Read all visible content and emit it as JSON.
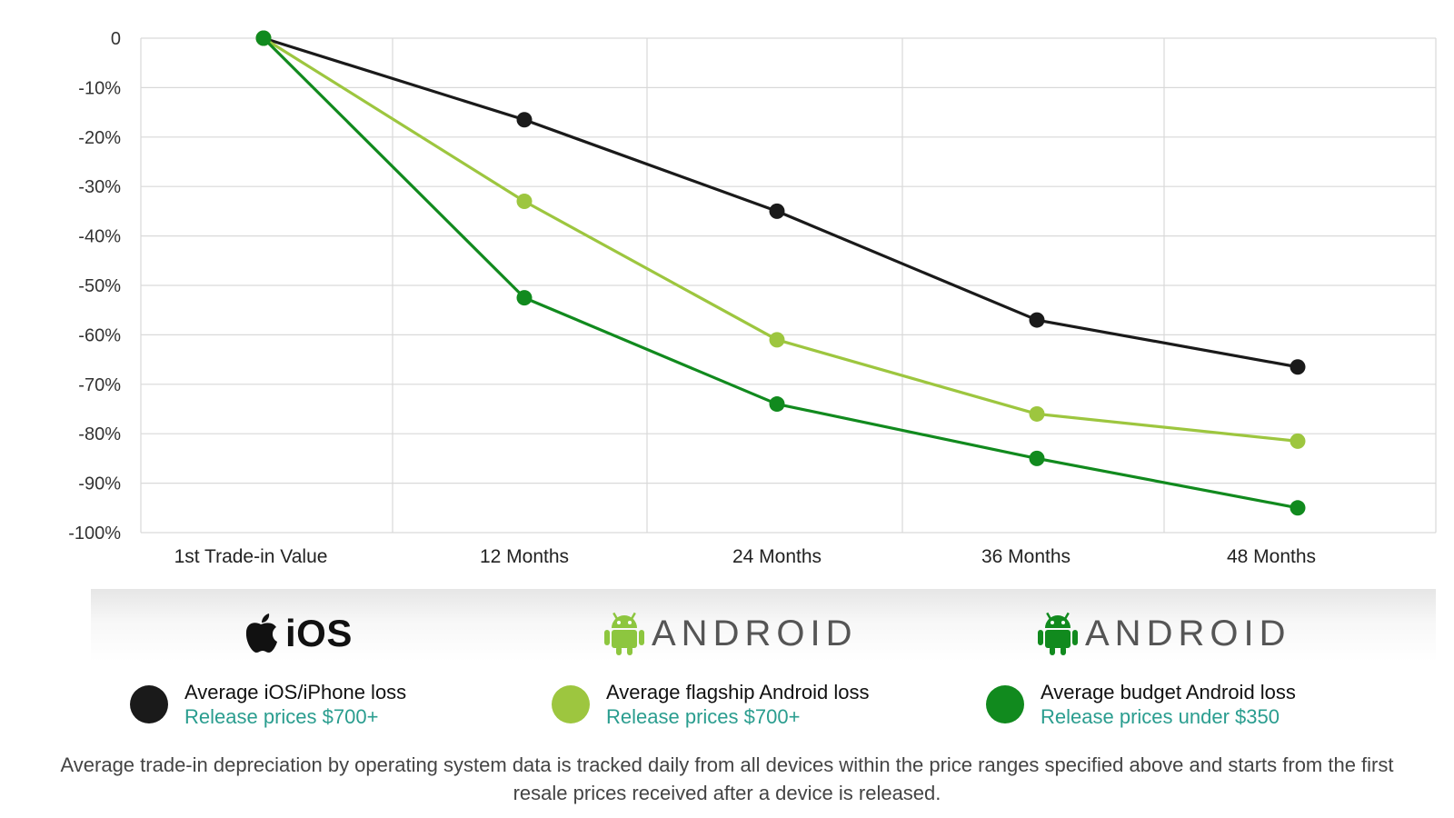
{
  "chart_data": {
    "type": "line",
    "categories": [
      "1st Trade-in Value",
      "12 Months",
      "24 Months",
      "36 Months",
      "48 Months"
    ],
    "y_ticks": [
      "0",
      "-10%",
      "-20%",
      "-30%",
      "-40%",
      "-50%",
      "-60%",
      "-70%",
      "-80%",
      "-90%",
      "-100%"
    ],
    "ylim": [
      -100,
      0
    ],
    "grid": true,
    "series": [
      {
        "name": "Average iOS/iPhone loss",
        "color": "#1a1a1a",
        "values": [
          0,
          -16.5,
          -35,
          -57,
          -66.5
        ]
      },
      {
        "name": "Average flagship Android loss",
        "color": "#9dc63f",
        "values": [
          0,
          -33,
          -61,
          -76,
          -81.5
        ]
      },
      {
        "name": "Average budget Android loss",
        "color": "#118a1e",
        "values": [
          0,
          -52.5,
          -74,
          -85,
          -95
        ]
      }
    ]
  },
  "brands": {
    "ios": {
      "label": "iOS",
      "icon": "apple-icon"
    },
    "android_flagship": {
      "label": "ANDROID",
      "icon": "android-robot-icon",
      "color": "#8dc63f"
    },
    "android_budget": {
      "label": "ANDROID",
      "icon": "android-robot-icon",
      "color": "#118a1e"
    }
  },
  "legend": [
    {
      "title": "Average iOS/iPhone loss",
      "subtitle": "Release prices $700+",
      "color": "#1a1a1a"
    },
    {
      "title": "Average flagship Android loss",
      "subtitle": "Release prices $700+",
      "color": "#9dc63f"
    },
    {
      "title": "Average budget Android loss",
      "subtitle": "Release prices under $350",
      "color": "#118a1e"
    }
  ],
  "footnote": "Average trade-in depreciation by operating system data is tracked daily from all devices within the price ranges specified above and starts from the first resale prices received after a device is released."
}
